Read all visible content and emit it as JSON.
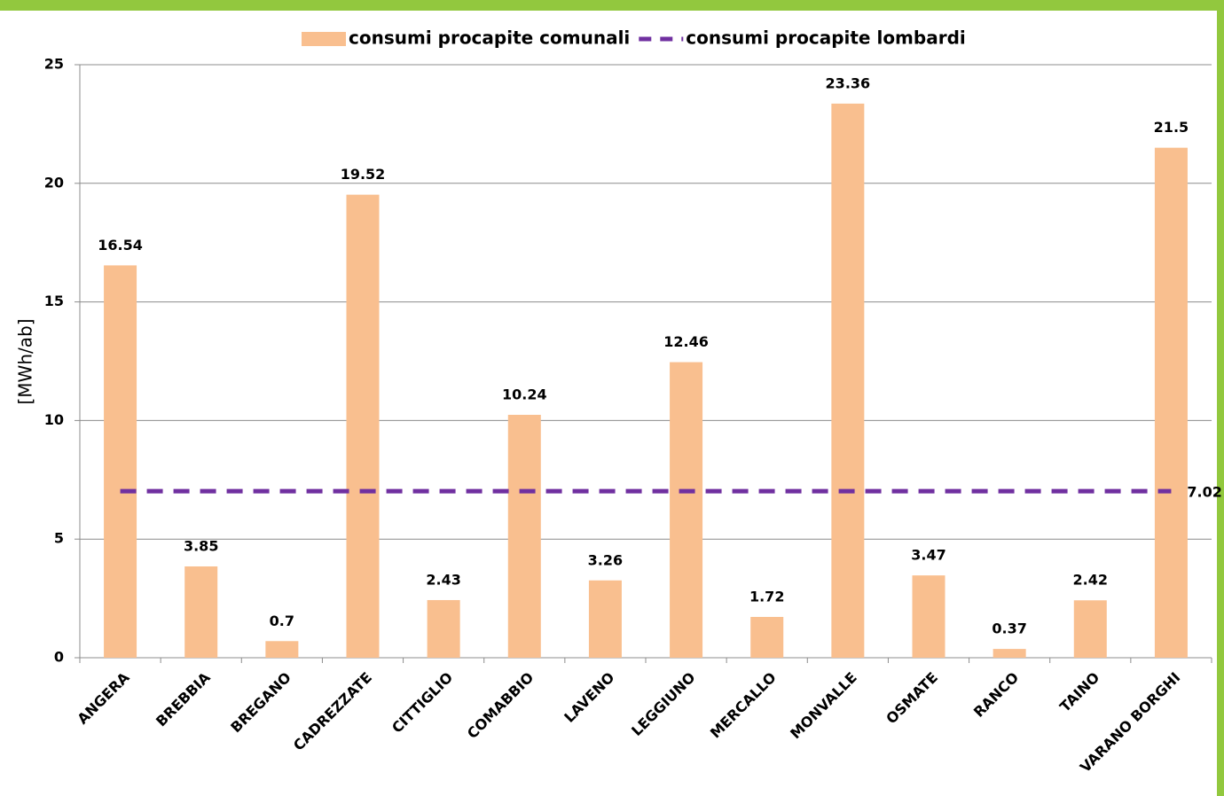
{
  "chart_data": {
    "type": "bar",
    "y_label": "[MWh/ab]",
    "categories": [
      "ANGERA",
      "BREBBIA",
      "BREGANO",
      "CADREZZATE",
      "CITTIGLIO",
      "COMABBIO",
      "LAVENO",
      "LEGGIUNO",
      "MERCALLO",
      "MONVALLE",
      "OSMATE",
      "RANCO",
      "TAINO",
      "VARANO BORGHI"
    ],
    "series": [
      {
        "name": "consumi procapite comunali",
        "type": "bar",
        "color": "#f9bf8f",
        "values": [
          16.54,
          3.85,
          0.7,
          19.52,
          2.43,
          10.24,
          3.26,
          12.46,
          1.72,
          23.36,
          3.47,
          0.37,
          2.42,
          21.5
        ]
      },
      {
        "name": "consumi procapite lombardi",
        "type": "line",
        "dashed": true,
        "color": "#7030a0",
        "values": [
          7.02,
          7.02,
          7.02,
          7.02,
          7.02,
          7.02,
          7.02,
          7.02,
          7.02,
          7.02,
          7.02,
          7.02,
          7.02,
          7.02
        ]
      }
    ],
    "ylim": [
      0,
      25
    ],
    "yticks": [
      0,
      5,
      10,
      15,
      20,
      25
    ],
    "grid": true,
    "legend": "top"
  }
}
